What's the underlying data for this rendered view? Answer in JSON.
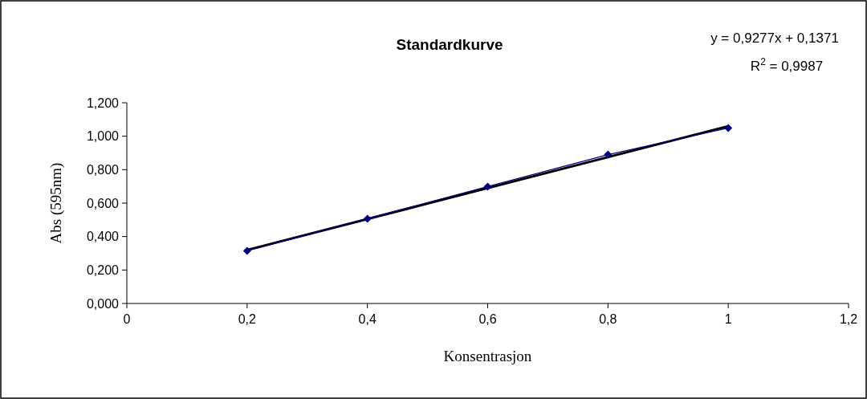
{
  "chart_data": {
    "type": "line",
    "title": "Standardkurve",
    "xlabel": "Konsentrasjon",
    "ylabel": "Abs (595nm)",
    "annotations": [
      "y = 0,9277x + 0,1371",
      "R$^{2}$ = 0,9987"
    ],
    "series": [
      {
        "color": "#000080",
        "marker": "diamond",
        "x": [
          0.2,
          0.4,
          0.6,
          0.8,
          1
        ],
        "values": [
          0.315,
          0.507,
          0.699,
          0.89,
          1.049
        ]
      },
      {
        "color": "#000000",
        "marker": "none",
        "x": [
          0.2,
          1
        ],
        "values": [
          0.32,
          1.06
        ]
      }
    ],
    "xlim": [
      0,
      1.2
    ],
    "ylim": [
      0,
      1.2
    ],
    "xticks": [
      0,
      {
        "value": 0.2,
        "label": "0,2"
      },
      {
        "value": 0.4,
        "label": "0,4"
      },
      {
        "value": 0.6,
        "label": "0,6"
      },
      {
        "value": 0.8,
        "label": "0,8"
      },
      1,
      {
        "value": 1.2,
        "label": "1,2"
      }
    ],
    "yticks": [
      {
        "value": 0,
        "label": "0,000"
      },
      {
        "value": 0.2,
        "label": "0,200"
      },
      {
        "value": 0.4,
        "label": "0,400"
      },
      {
        "value": 0.6,
        "label": "0,600"
      },
      {
        "value": 0.8,
        "label": "0,800"
      },
      {
        "value": 1,
        "label": "1,000"
      },
      {
        "value": 1.2,
        "label": "1,200"
      }
    ],
    "grid": false
  }
}
